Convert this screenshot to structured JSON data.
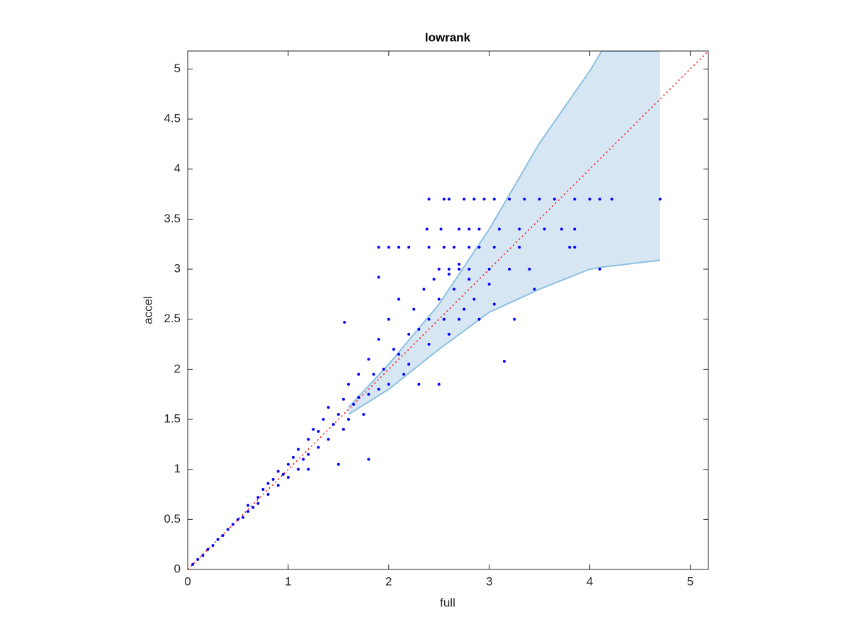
{
  "chart_data": {
    "type": "scatter",
    "title": "lowrank",
    "xlabel": "full",
    "ylabel": "accel",
    "xlim": [
      0,
      5.18
    ],
    "ylim": [
      0,
      5.18
    ],
    "xticks": [
      0,
      1,
      2,
      3,
      4,
      5
    ],
    "yticks": [
      0,
      0.5,
      1,
      1.5,
      2,
      2.5,
      3,
      3.5,
      4,
      4.5,
      5
    ],
    "color": "#0000ff",
    "x": [
      0.05,
      0.1,
      0.15,
      0.2,
      0.25,
      0.3,
      0.35,
      0.4,
      0.45,
      0.5,
      0.55,
      0.6,
      0.6,
      0.65,
      0.7,
      0.7,
      0.75,
      0.8,
      0.8,
      0.85,
      0.9,
      0.9,
      0.95,
      1.0,
      1.0,
      1.05,
      1.1,
      1.1,
      1.15,
      1.2,
      1.2,
      1.25,
      1.3,
      1.3,
      1.35,
      1.4,
      1.4,
      1.45,
      1.5,
      1.5,
      1.55,
      1.55,
      1.6,
      1.6,
      1.65,
      1.7,
      1.7,
      1.75,
      1.8,
      1.8,
      1.8,
      1.85,
      1.9,
      1.9,
      1.95,
      2.0,
      2.0,
      2.05,
      2.1,
      2.1,
      2.15,
      2.2,
      2.2,
      2.25,
      2.3,
      2.3,
      2.35,
      2.4,
      2.4,
      2.45,
      2.5,
      2.5,
      2.55,
      2.6,
      2.6,
      2.65,
      2.7,
      2.7,
      2.75,
      2.8,
      2.85,
      2.9,
      3.0,
      3.05,
      3.15,
      3.25,
      3.45,
      4.1,
      1.56,
      1.9,
      1.2,
      2.4,
      2.55,
      2.6,
      2.75,
      2.85,
      2.95,
      3.05,
      3.2,
      3.35,
      3.5,
      3.65,
      3.85,
      4.0,
      4.1,
      4.22,
      4.7,
      2.38,
      2.52,
      2.7,
      2.8,
      2.9,
      3.1,
      3.3,
      3.55,
      3.72,
      3.85,
      1.9,
      2.0,
      2.1,
      2.2,
      2.4,
      2.55,
      2.65,
      2.8,
      2.9,
      3.05,
      3.3,
      3.8,
      3.85,
      2.5,
      2.6,
      2.7,
      2.8,
      3.0,
      3.2,
      3.4
    ],
    "y": [
      0.05,
      0.1,
      0.14,
      0.2,
      0.24,
      0.3,
      0.34,
      0.4,
      0.45,
      0.5,
      0.52,
      0.58,
      0.64,
      0.62,
      0.72,
      0.66,
      0.8,
      0.75,
      0.86,
      0.9,
      0.84,
      0.98,
      0.95,
      1.05,
      0.92,
      1.12,
      1.0,
      1.2,
      1.1,
      1.3,
      1.15,
      1.4,
      1.22,
      1.38,
      1.5,
      1.3,
      1.62,
      1.45,
      1.55,
      1.05,
      1.7,
      1.4,
      1.85,
      1.5,
      1.65,
      1.95,
      1.72,
      1.55,
      2.1,
      1.1,
      1.75,
      1.95,
      2.3,
      1.8,
      2.0,
      2.5,
      1.85,
      2.2,
      2.15,
      2.7,
      1.95,
      2.35,
      2.05,
      2.6,
      2.4,
      1.85,
      2.8,
      2.5,
      2.25,
      2.9,
      2.7,
      1.85,
      2.5,
      2.95,
      2.35,
      2.8,
      2.5,
      3.05,
      2.6,
      2.9,
      2.7,
      2.5,
      2.85,
      2.65,
      2.08,
      2.5,
      2.8,
      3.0,
      2.47,
      2.92,
      1.0,
      3.7,
      3.7,
      3.7,
      3.7,
      3.7,
      3.7,
      3.7,
      3.7,
      3.7,
      3.7,
      3.7,
      3.7,
      3.7,
      3.7,
      3.7,
      3.7,
      3.4,
      3.4,
      3.4,
      3.4,
      3.4,
      3.4,
      3.4,
      3.4,
      3.4,
      3.4,
      3.22,
      3.22,
      3.22,
      3.22,
      3.22,
      3.22,
      3.22,
      3.22,
      3.22,
      3.22,
      3.22,
      3.22,
      3.22,
      3.0,
      3.0,
      3.0,
      3.0,
      3.0,
      3.0,
      3.0
    ],
    "band": {
      "x": [
        1.6,
        2,
        2.5,
        3,
        3.5,
        4,
        4.12,
        4.7
      ],
      "upper": [
        1.62,
        2.05,
        2.65,
        3.4,
        4.26,
        4.98,
        5.18,
        5.18
      ],
      "lower": [
        1.55,
        1.8,
        2.2,
        2.57,
        2.8,
        3.0,
        3.02,
        3.09
      ],
      "color": "#d6e7f3",
      "edge_color": "#8dbfe0"
    },
    "reference_line": {
      "x": [
        0,
        5.18
      ],
      "y": [
        0,
        5.18
      ],
      "color": "#ff0000"
    }
  }
}
